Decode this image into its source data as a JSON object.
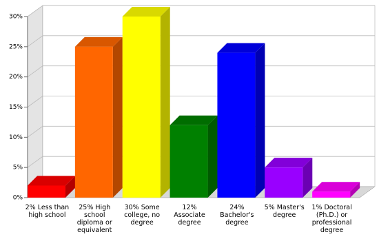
{
  "chart_data": {
    "type": "bar3d",
    "categories": [
      "2% Less than high school",
      "25% High school diploma or equivalent",
      "30% Some college, no degree",
      "12% Associate degree",
      "24% Bachelor's degree",
      "5% Master's degree",
      "1% Doctoral (Ph.D.) or professional degree"
    ],
    "values": [
      2,
      25,
      30,
      12,
      24,
      5,
      1
    ],
    "colors": [
      "#ff0000",
      "#ff6600",
      "#ffff00",
      "#008000",
      "#0000ff",
      "#9900ff",
      "#ff00ff"
    ],
    "ylim": [
      0,
      30
    ],
    "yticks": [
      {
        "value": 0,
        "label": "0%"
      },
      {
        "value": 5,
        "label": "5%"
      },
      {
        "value": 10,
        "label": "10%"
      },
      {
        "value": 15,
        "label": "15%"
      },
      {
        "value": 20,
        "label": "20%"
      },
      {
        "value": 25,
        "label": "25%"
      },
      {
        "value": 30,
        "label": "30%"
      }
    ],
    "grid": true
  }
}
